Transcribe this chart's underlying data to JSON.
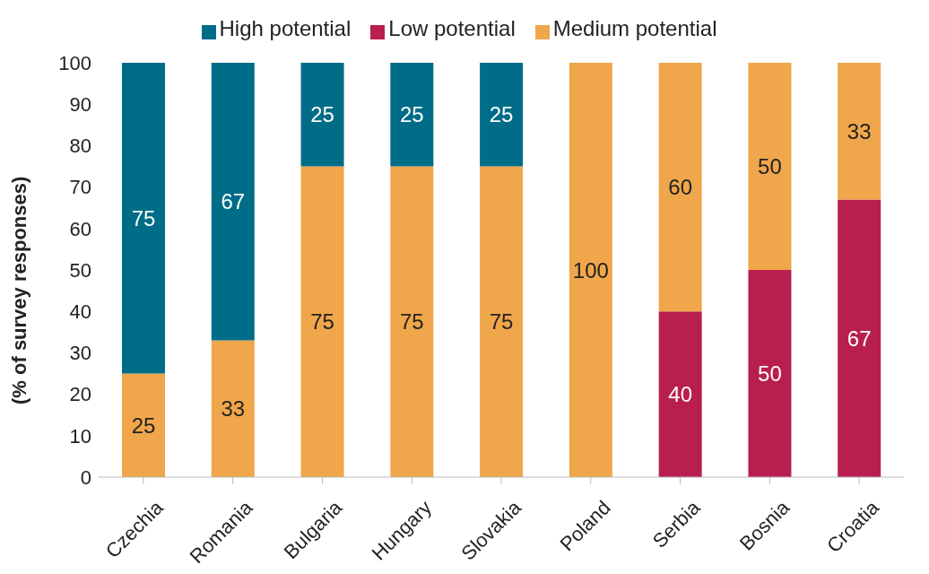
{
  "chart_data": {
    "type": "bar",
    "stacked": true,
    "ylabel": "(% of survey responses)",
    "categories": [
      "Czechia",
      "Romania",
      "Bulgaria",
      "Hungary",
      "Slovakia",
      "Poland",
      "Serbia",
      "Bosnia",
      "Croatia"
    ],
    "series": [
      {
        "name": "Low potential",
        "color": "#b81f4f",
        "values": [
          null,
          null,
          null,
          null,
          null,
          null,
          40,
          50,
          67
        ]
      },
      {
        "name": "Medium potential",
        "color": "#f0a64a",
        "values": [
          25,
          33,
          75,
          75,
          75,
          100,
          60,
          50,
          33
        ]
      },
      {
        "name": "High potential",
        "color": "#006d88",
        "values": [
          75,
          67,
          25,
          25,
          25,
          null,
          null,
          null,
          null
        ]
      }
    ],
    "ylim": [
      0,
      100
    ],
    "yticks": [
      0,
      10,
      20,
      30,
      40,
      50,
      60,
      70,
      80,
      90,
      100
    ],
    "legend": "top",
    "data_labels": true
  }
}
